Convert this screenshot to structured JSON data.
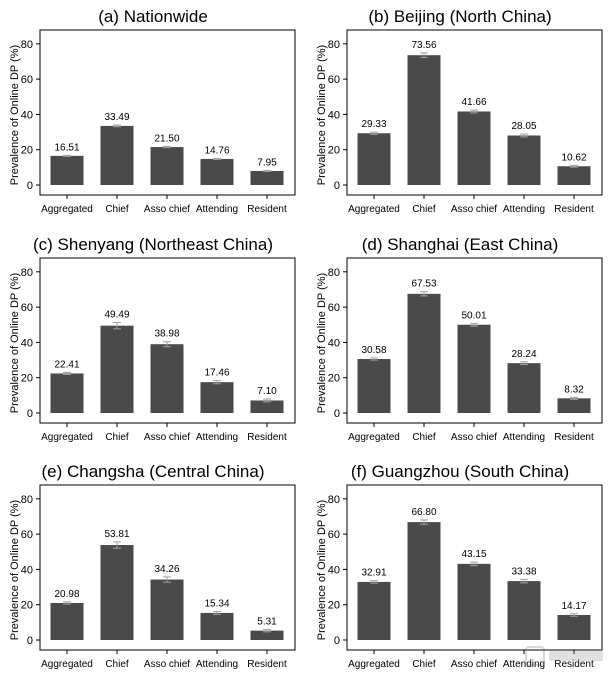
{
  "chart_data": [
    {
      "type": "bar",
      "title": "(a) Nationwide",
      "ylabel": "Prevalence of Online DP (%)",
      "categories": [
        "Aggregated",
        "Chief",
        "Asso chief",
        "Attending",
        "Resident"
      ],
      "values": [
        16.51,
        33.49,
        21.5,
        14.76,
        7.95
      ],
      "value_labels": [
        "16.51",
        "33.49",
        "21.50",
        "14.76",
        "7.95"
      ],
      "errors": [
        0.3,
        0.5,
        0.4,
        0.3,
        0.3
      ],
      "yticks": [
        "0",
        "20",
        "40",
        "60",
        "80"
      ],
      "ylim": [
        0,
        85
      ]
    },
    {
      "type": "bar",
      "title": "(b) Beijing (North China)",
      "ylabel": "Prevalence of Online DP (%)",
      "categories": [
        "Aggregated",
        "Chief",
        "Asso chief",
        "Attending",
        "Resident"
      ],
      "values": [
        29.33,
        73.56,
        41.66,
        28.05,
        10.62
      ],
      "value_labels": [
        "29.33",
        "73.56",
        "41.66",
        "28.05",
        "10.62"
      ],
      "errors": [
        0.6,
        1.3,
        0.8,
        0.8,
        0.5
      ],
      "yticks": [
        "0",
        "20",
        "40",
        "60",
        "80"
      ],
      "ylim": [
        0,
        85
      ]
    },
    {
      "type": "bar",
      "title": "(c) Shenyang (Northeast China)",
      "ylabel": "Prevalence of Online DP (%)",
      "categories": [
        "Aggregated",
        "Chief",
        "Asso chief",
        "Attending",
        "Resident"
      ],
      "values": [
        22.41,
        49.49,
        38.98,
        17.46,
        7.1
      ],
      "value_labels": [
        "22.41",
        "49.49",
        "38.98",
        "17.46",
        "7.10"
      ],
      "errors": [
        0.6,
        1.8,
        1.4,
        0.9,
        0.8
      ],
      "yticks": [
        "0",
        "20",
        "40",
        "60",
        "80"
      ],
      "ylim": [
        0,
        85
      ]
    },
    {
      "type": "bar",
      "title": "(d) Shanghai (East China)",
      "ylabel": "Prevalence of Online DP (%)",
      "categories": [
        "Aggregated",
        "Chief",
        "Asso chief",
        "Attending",
        "Resident"
      ],
      "values": [
        30.58,
        67.53,
        50.01,
        28.24,
        8.32
      ],
      "value_labels": [
        "30.58",
        "67.53",
        "50.01",
        "28.24",
        "8.32"
      ],
      "errors": [
        0.6,
        1.2,
        0.8,
        0.8,
        0.6
      ],
      "yticks": [
        "0",
        "20",
        "40",
        "60",
        "80"
      ],
      "ylim": [
        0,
        85
      ]
    },
    {
      "type": "bar",
      "title": "(e) Changsha (Central China)",
      "ylabel": "Prevalence of Online DP (%)",
      "categories": [
        "Aggregated",
        "Chief",
        "Asso chief",
        "Attending",
        "Resident"
      ],
      "values": [
        20.98,
        53.81,
        34.26,
        15.34,
        5.31
      ],
      "value_labels": [
        "20.98",
        "53.81",
        "34.26",
        "15.34",
        "5.31"
      ],
      "errors": [
        0.6,
        1.8,
        1.5,
        0.8,
        0.7
      ],
      "yticks": [
        "0",
        "20",
        "40",
        "60",
        "80"
      ],
      "ylim": [
        0,
        85
      ]
    },
    {
      "type": "bar",
      "title": "(f) Guangzhou (South China)",
      "ylabel": "Prevalence of Online DP (%)",
      "categories": [
        "Aggregated",
        "Chief",
        "Asso chief",
        "Attending",
        "Resident"
      ],
      "values": [
        32.91,
        66.8,
        43.15,
        33.38,
        14.17
      ],
      "value_labels": [
        "32.91",
        "66.80",
        "43.15",
        "33.38",
        "14.17"
      ],
      "errors": [
        0.7,
        1.2,
        1.0,
        1.0,
        0.7
      ],
      "yticks": [
        "0",
        "20",
        "40",
        "60",
        "80"
      ],
      "ylim": [
        0,
        85
      ]
    }
  ],
  "colors": {
    "bar": "#4a4a4a",
    "error_bar": "#a0a0a0",
    "axis": "#000000",
    "text": "#000000"
  },
  "watermark": {
    "icon": "logo-watermark-icon"
  }
}
